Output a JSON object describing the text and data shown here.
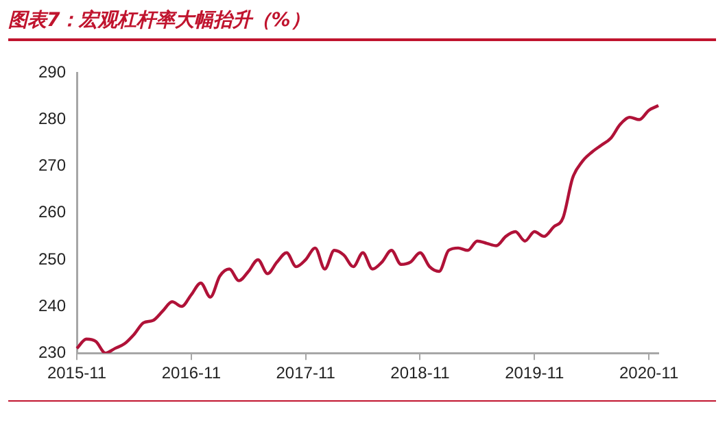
{
  "chart_data": {
    "type": "line",
    "title": "图表7：宏观杠杆率大幅抬升（%）",
    "categories": [
      "2015-11",
      null,
      null,
      null,
      null,
      null,
      null,
      null,
      null,
      null,
      null,
      null,
      "2016-11",
      null,
      null,
      null,
      null,
      null,
      null,
      null,
      null,
      null,
      null,
      null,
      "2017-11",
      null,
      null,
      null,
      null,
      null,
      null,
      null,
      null,
      null,
      null,
      null,
      "2018-11",
      null,
      null,
      null,
      null,
      null,
      null,
      null,
      null,
      null,
      null,
      null,
      "2019-11",
      null,
      null,
      null,
      null,
      null,
      null,
      null,
      null,
      null,
      null,
      null,
      "2020-11",
      null
    ],
    "series": [
      {
        "color": "#b01238",
        "values": [
          231,
          233,
          232.5,
          230,
          231,
          232,
          234,
          236.5,
          237,
          239,
          241,
          240,
          242.5,
          245,
          242,
          246.5,
          248,
          245.5,
          247.5,
          250,
          247,
          249.5,
          251.5,
          248.5,
          250,
          252.5,
          248,
          252,
          251,
          248.5,
          251.5,
          248,
          249.5,
          252,
          249,
          249.5,
          251.5,
          248.5,
          247.5,
          252,
          252.5,
          252,
          254,
          253.5,
          253,
          255,
          256,
          254,
          256,
          255,
          257,
          259,
          267.5,
          271,
          273,
          274.5,
          276,
          279,
          280.5,
          280,
          282,
          283
        ]
      }
    ],
    "ylim": [
      230,
      290
    ],
    "yticks": [
      230,
      240,
      250,
      260,
      270,
      280,
      290
    ],
    "grid": false,
    "legend": false,
    "marker": "none",
    "line_style": "solid"
  }
}
